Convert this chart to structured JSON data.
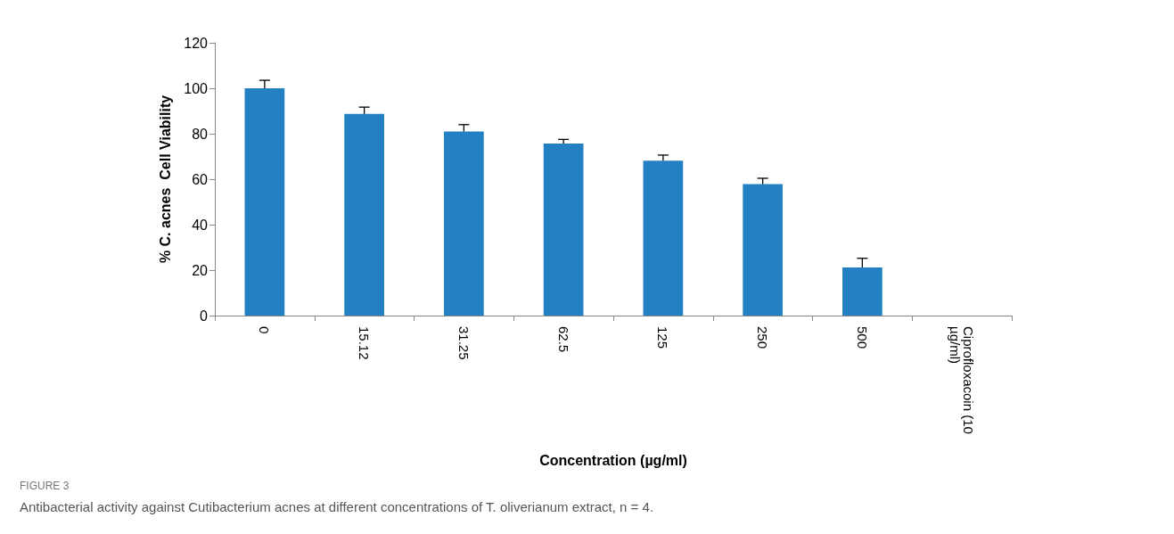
{
  "chart_data": {
    "type": "bar",
    "ylabel": "% C. acnes  Cell Viability",
    "xlabel": "Concentration (µg/ml)",
    "annotations": [
      "FIGURE 3",
      "Antibacterial activity against Cutibacterium acnes at different concentrations of T. oliverianum extract, n = 4."
    ],
    "categories": [
      "0",
      "15.12",
      "31.25",
      "62.5",
      "125",
      "250",
      "500",
      "Ciprofloxacoin (10 µg/ml)"
    ],
    "values": [
      100,
      88.7,
      81,
      75.7,
      68.1,
      57.8,
      21.2,
      0
    ],
    "errors": [
      [
        100,
        103.5
      ],
      [
        88.7,
        91.7
      ],
      [
        81,
        84
      ],
      [
        75.7,
        77.5
      ],
      [
        68.1,
        70.6
      ],
      [
        57.8,
        60.4
      ],
      [
        21.2,
        25.2
      ],
      null
    ],
    "color": "#2381c3",
    "ylim": [
      0,
      120
    ],
    "yticks": [
      0,
      20,
      40,
      60,
      80,
      100,
      120
    ],
    "grid": false
  }
}
